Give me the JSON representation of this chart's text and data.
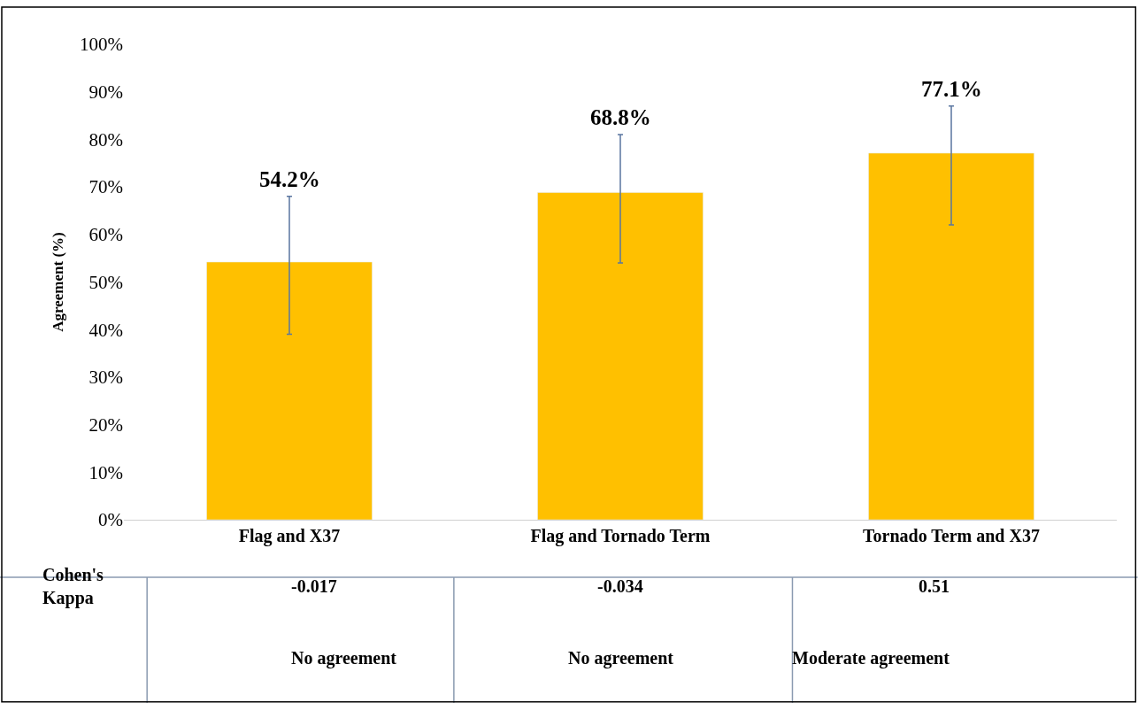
{
  "chart_data": {
    "type": "bar",
    "ylabel": "Agreement (%)",
    "categories": [
      "Flag and X37",
      "Flag and Tornado Term",
      "Tornado Term and X37"
    ],
    "values": [
      54.2,
      68.8,
      77.1
    ],
    "color": "#ffc000",
    "errors": [
      [
        39,
        68
      ],
      [
        54,
        81
      ],
      [
        62,
        87
      ]
    ],
    "value_labels": [
      "54.2%",
      "68.8%",
      "77.1%"
    ],
    "ylim": [
      0,
      100
    ],
    "yticks": [
      {
        "value": 0,
        "label": "0%"
      },
      {
        "value": 10,
        "label": "10%"
      },
      {
        "value": 20,
        "label": "20%"
      },
      {
        "value": 30,
        "label": "30%"
      },
      {
        "value": 40,
        "label": "40%"
      },
      {
        "value": 50,
        "label": "50%"
      },
      {
        "value": 60,
        "label": "60%"
      },
      {
        "value": 70,
        "label": "70%"
      },
      {
        "value": 80,
        "label": "80%"
      },
      {
        "value": 90,
        "label": "90%"
      },
      {
        "value": 100,
        "label": "100%"
      }
    ],
    "annotations": [
      "Cohen's Kappa",
      "-0.017",
      "No agreement",
      "-0.034",
      "No agreement",
      "0.51",
      "Moderate agreement"
    ]
  }
}
